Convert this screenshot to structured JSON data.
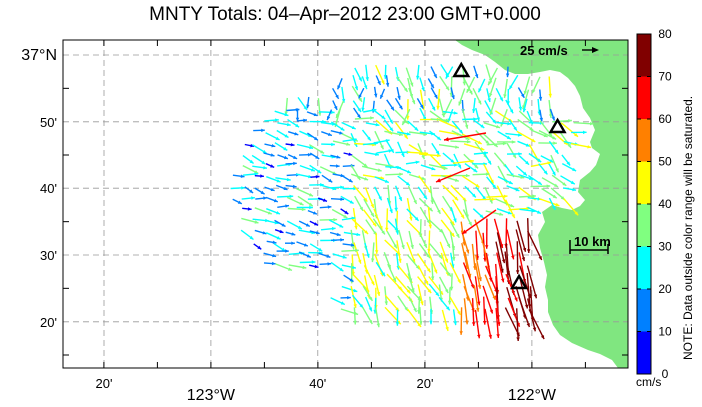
{
  "title": "MNTY Totals: 04–Apr–2012 23:00 GMT+0.000",
  "map": {
    "lon_labels": [
      {
        "lon": -123.333,
        "text": "20'",
        "major": false
      },
      {
        "lon": -123.0,
        "text": "123°W",
        "major": true
      },
      {
        "lon": -122.667,
        "text": "40'",
        "major": false
      },
      {
        "lon": -122.333,
        "text": "20'",
        "major": false
      },
      {
        "lon": -122.0,
        "text": "122°W",
        "major": true
      }
    ],
    "lat_labels": [
      {
        "lat": 37.0,
        "text": "37°N",
        "major": true
      },
      {
        "lat": 36.833,
        "text": "50'",
        "major": false
      },
      {
        "lat": 36.667,
        "text": "40'",
        "major": false
      },
      {
        "lat": 36.5,
        "text": "30'",
        "major": false
      },
      {
        "lat": 36.333,
        "text": "20'",
        "major": false
      }
    ],
    "reference_vector_label": "25 cm/s",
    "scale_bar_label": "10 km",
    "stations": [
      {
        "lon": -122.22,
        "lat": 36.96
      },
      {
        "lon": -121.92,
        "lat": 36.82
      },
      {
        "lon": -122.04,
        "lat": 36.43
      }
    ],
    "land_color": "#80e680",
    "grid_color": "#999999"
  },
  "colorbar": {
    "ticks": [
      "0",
      "10",
      "20",
      "30",
      "40",
      "50",
      "60",
      "70",
      "80"
    ],
    "colors": [
      "#0000ff",
      "#0080ff",
      "#00ffff",
      "#80ff80",
      "#ffff00",
      "#ff8000",
      "#ff0000",
      "#800000"
    ],
    "units": "cm/s",
    "note": "NOTE: Data outside color range will be saturated."
  }
}
